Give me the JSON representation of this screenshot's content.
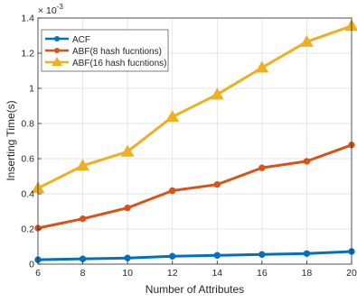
{
  "chart_data": {
    "type": "line",
    "title": "",
    "xlabel": "Number of Attributes",
    "ylabel": "Inserting Time(s)",
    "exponent_label": "× 10",
    "exponent_power": "-3",
    "x": [
      6,
      8,
      10,
      12,
      14,
      16,
      18,
      20
    ],
    "xlim": [
      6,
      20
    ],
    "ylim": [
      0,
      1.4
    ],
    "xticks": [
      6,
      8,
      10,
      12,
      14,
      16,
      18,
      20
    ],
    "xtick_labels": [
      "6",
      "8",
      "10",
      "12",
      "14",
      "16",
      "18",
      "20"
    ],
    "yticks": [
      0,
      0.2,
      0.4,
      0.6,
      0.8,
      1.0,
      1.2,
      1.4
    ],
    "ytick_labels": [
      "0",
      "0.2",
      "0.4",
      "0.6",
      "0.8",
      "1",
      "1.2",
      "1.4"
    ],
    "grid": true,
    "legend_position": "top-left",
    "series": [
      {
        "name": "ACF",
        "color": "#0072BD",
        "marker": "circle",
        "values": [
          0.025,
          0.03,
          0.035,
          0.045,
          0.05,
          0.055,
          0.06,
          0.072
        ]
      },
      {
        "name": "ABF(8 hash fucntions)",
        "color": "#D95319",
        "marker": "circle",
        "values": [
          0.205,
          0.258,
          0.32,
          0.418,
          0.453,
          0.548,
          0.585,
          0.678
        ]
      },
      {
        "name": "ABF(16 hash fucntions)",
        "color": "#EDB120",
        "marker": "triangle",
        "values": [
          0.432,
          0.56,
          0.64,
          0.838,
          0.965,
          1.118,
          1.265,
          1.355
        ]
      }
    ]
  }
}
